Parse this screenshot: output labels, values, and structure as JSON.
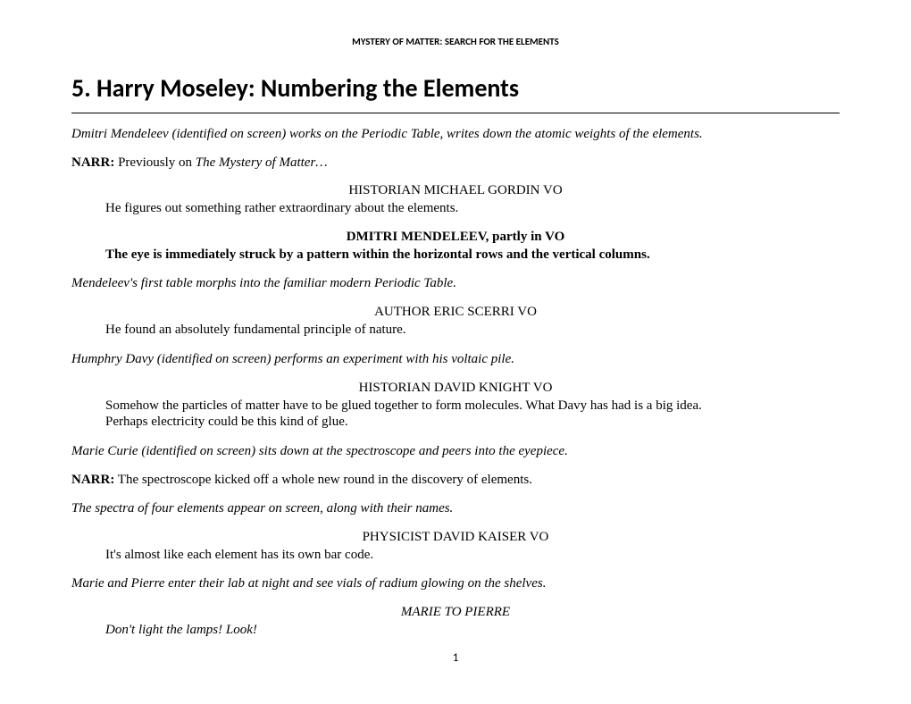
{
  "header": "MYSTERY OF MATTER: SEARCH FOR THE ELEMENTS",
  "title": "5. Harry Moseley: Numbering the Elements",
  "blocks": [
    {
      "type": "scene",
      "text": "Dmitri Mendeleev (identified on screen) works on the Periodic Table, writes down the atomic weights of the elements."
    },
    {
      "type": "narr",
      "label": "NARR:",
      "plain": " Previously on ",
      "italic": "The Mystery of Matter…"
    },
    {
      "type": "speaker",
      "text": "HISTORIAN MICHAEL GORDIN VO"
    },
    {
      "type": "speech",
      "text": "He figures out something rather extraordinary about the elements."
    },
    {
      "type": "speaker-bold",
      "text": "DMITRI MENDELEEV, partly in VO"
    },
    {
      "type": "speech-bold",
      "text": "The eye is immediately struck by a pattern within the horizontal rows and the vertical columns."
    },
    {
      "type": "scene",
      "text": "Mendeleev's first table morphs into the familiar modern Periodic Table."
    },
    {
      "type": "speaker",
      "text": "AUTHOR ERIC SCERRI VO"
    },
    {
      "type": "speech",
      "text": "He found an absolutely fundamental principle of nature."
    },
    {
      "type": "scene",
      "text": "Humphry Davy (identified on screen) performs an experiment with his voltaic pile."
    },
    {
      "type": "speaker",
      "text": "HISTORIAN DAVID KNIGHT VO"
    },
    {
      "type": "speech",
      "text": "Somehow the particles of matter have to be glued together to form molecules. What Davy has had is a big idea. Perhaps electricity could be this kind of glue."
    },
    {
      "type": "scene",
      "text": "Marie Curie (identified on screen) sits down at the spectroscope and peers into the eyepiece."
    },
    {
      "type": "narr",
      "label": "NARR:",
      "plain": " The spectroscope kicked off a whole new round in the discovery of elements.",
      "italic": ""
    },
    {
      "type": "scene",
      "text": "The spectra of four elements appear on screen, along with their names."
    },
    {
      "type": "speaker",
      "text": "PHYSICIST DAVID KAISER VO"
    },
    {
      "type": "speech",
      "text": "It's almost like each element has its own bar code."
    },
    {
      "type": "scene",
      "text": "Marie and Pierre enter their lab at night and see vials of radium glowing on the shelves."
    },
    {
      "type": "speaker-italic",
      "text": "MARIE TO PIERRE"
    },
    {
      "type": "speech-italic",
      "text": "Don't light the lamps! Look!"
    }
  ],
  "pagenum": "1"
}
